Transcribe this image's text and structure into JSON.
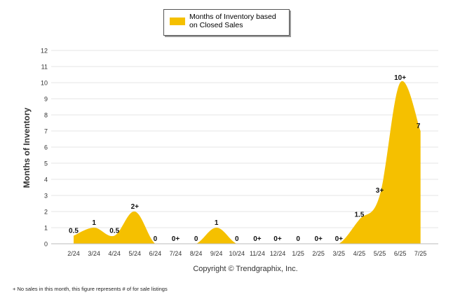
{
  "chart_data": {
    "type": "area",
    "ylabel": "Months of Inventory",
    "ylim": [
      0,
      12
    ],
    "yticks": [
      0,
      1,
      2,
      3,
      4,
      5,
      6,
      7,
      8,
      9,
      10,
      11,
      12
    ],
    "grid": true,
    "legend_position": "top-center",
    "categories": [
      "2/24",
      "3/24",
      "4/24",
      "5/24",
      "6/24",
      "7/24",
      "8/24",
      "9/24",
      "10/24",
      "11/24",
      "12/24",
      "1/25",
      "2/25",
      "3/25",
      "4/25",
      "5/25",
      "6/25",
      "7/25"
    ],
    "series": [
      {
        "name": "Months of Inventory based on Closed Sales",
        "color": "#f5c000",
        "values": [
          0.5,
          1,
          0.5,
          2,
          0,
          0,
          0,
          1,
          0,
          0,
          0,
          0,
          0,
          0,
          1.5,
          3,
          10,
          7
        ],
        "labels": [
          "0.5",
          "1",
          "0.5",
          "2+",
          "0",
          "0+",
          "0",
          "1",
          "0",
          "0+",
          "0+",
          "0",
          "0+",
          "0+",
          "1.5",
          "3+",
          "10+",
          "7"
        ]
      }
    ],
    "xlabel": "Copyright © Trendgraphix, Inc.",
    "footnote": "+ No sales in this month, this figure represents # of for sale listings"
  },
  "colors": {
    "fill": "#f5c000",
    "grid": "#e6e6e6",
    "axis": "#bbbbbb"
  }
}
